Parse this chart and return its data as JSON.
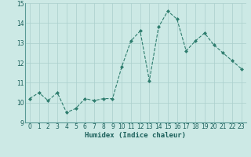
{
  "x": [
    0,
    1,
    2,
    3,
    4,
    5,
    6,
    7,
    8,
    9,
    10,
    11,
    12,
    13,
    14,
    15,
    16,
    17,
    18,
    19,
    20,
    21,
    22,
    23
  ],
  "y": [
    10.2,
    10.5,
    10.1,
    10.5,
    9.5,
    9.7,
    10.2,
    10.1,
    10.2,
    10.2,
    11.8,
    13.1,
    13.6,
    11.1,
    13.8,
    14.6,
    14.2,
    12.6,
    13.1,
    13.5,
    12.9,
    12.5,
    12.1,
    11.7
  ],
  "xlabel": "Humidex (Indice chaleur)",
  "line_color": "#2e7d6e",
  "marker": "D",
  "marker_size": 2.0,
  "bg_color": "#cce9e5",
  "grid_color": "#aacfcc",
  "xlim": [
    -0.5,
    23.5
  ],
  "ylim": [
    9,
    15
  ],
  "yticks": [
    9,
    10,
    11,
    12,
    13,
    14,
    15
  ],
  "xticks": [
    0,
    1,
    2,
    3,
    4,
    5,
    6,
    7,
    8,
    9,
    10,
    11,
    12,
    13,
    14,
    15,
    16,
    17,
    18,
    19,
    20,
    21,
    22,
    23
  ],
  "xtick_labels": [
    "0",
    "1",
    "2",
    "3",
    "4",
    "5",
    "6",
    "7",
    "8",
    "9",
    "10",
    "11",
    "12",
    "13",
    "14",
    "15",
    "16",
    "17",
    "18",
    "19",
    "20",
    "21",
    "22",
    "23"
  ],
  "xlabel_fontsize": 6.5,
  "tick_fontsize": 5.5,
  "linewidth": 0.8
}
